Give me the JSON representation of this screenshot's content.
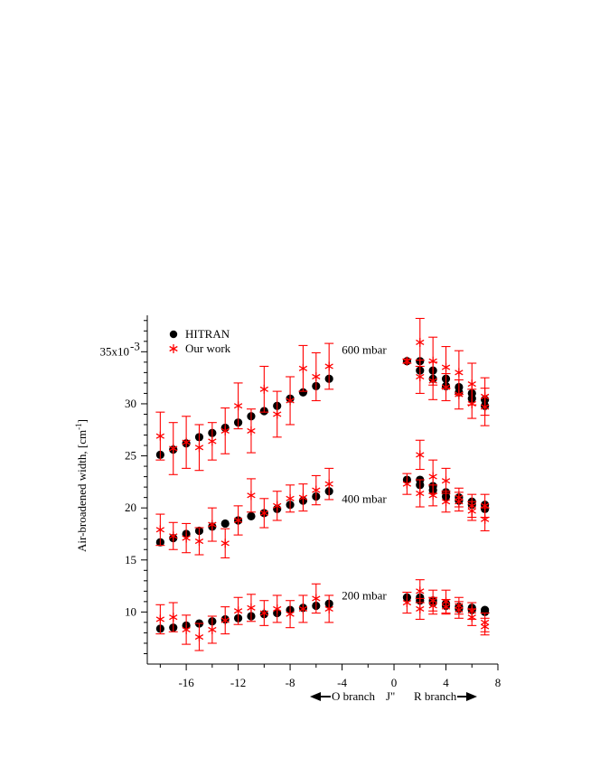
{
  "chart_data": {
    "type": "scatter",
    "ylabel": "Air-broadened width, [cm",
    "ylabel_sup": "-1",
    "ylabel_close": "]",
    "xlabel": "J\"",
    "x_ticks": [
      -16,
      -12,
      -8,
      -4,
      0,
      4,
      8
    ],
    "x_tick_labels": [
      "-16",
      "-12",
      "-8",
      "-4",
      "0",
      "4",
      "8"
    ],
    "y_ticks": [
      10,
      15,
      20,
      25,
      30,
      35
    ],
    "y_tick_labels": [
      "10",
      "15",
      "20",
      "25",
      "30",
      "35x10"
    ],
    "y_tick_exponent": "-3",
    "xlim": [
      -19,
      8
    ],
    "ylim": [
      5,
      38.5
    ],
    "legend": {
      "placement": "top-left",
      "hitran": "HITRAN",
      "ours": "Our work"
    },
    "colors": {
      "hitran": "#000000",
      "ours": "#ff0000"
    },
    "branch_labels": {
      "o": "O branch",
      "r": "R branch"
    },
    "groups": [
      {
        "label": "600 mbar",
        "label_x": -2.3,
        "label_y": 34.8,
        "hitran": [
          [
            -18,
            25.1
          ],
          [
            -17,
            25.6
          ],
          [
            -16,
            26.2
          ],
          [
            -15,
            26.8
          ],
          [
            -14,
            27.2
          ],
          [
            -13,
            27.7
          ],
          [
            -12,
            28.2
          ],
          [
            -11,
            28.8
          ],
          [
            -10,
            29.3
          ],
          [
            -9,
            29.8
          ],
          [
            -8,
            30.5
          ],
          [
            -7,
            31.1
          ],
          [
            -6,
            31.7
          ],
          [
            -5,
            32.4
          ],
          [
            1,
            34.1
          ],
          [
            2,
            34.1
          ],
          [
            2,
            33.2
          ],
          [
            3,
            33.2
          ],
          [
            3,
            32.4
          ],
          [
            4,
            32.4
          ],
          [
            4,
            31.7
          ],
          [
            5,
            31.6
          ],
          [
            5,
            31.1
          ],
          [
            6,
            31.0
          ],
          [
            6,
            30.5
          ],
          [
            7,
            30.4
          ],
          [
            7,
            29.8
          ]
        ],
        "ours": [
          [
            -18,
            26.9,
            2.3
          ],
          [
            -17,
            25.7,
            2.5
          ],
          [
            -16,
            26.3,
            2.5
          ],
          [
            -15,
            25.8,
            2.2
          ],
          [
            -14,
            26.4,
            1.8
          ],
          [
            -13,
            27.4,
            2.2
          ],
          [
            -12,
            29.8,
            2.2
          ],
          [
            -11,
            27.4,
            2.1
          ],
          [
            -10,
            31.4,
            2.2
          ],
          [
            -9,
            29.0,
            2.2
          ],
          [
            -8,
            30.3,
            2.3
          ],
          [
            -7,
            33.4,
            2.2
          ],
          [
            -6,
            32.6,
            2.3
          ],
          [
            -5,
            33.6,
            2.2
          ],
          [
            1,
            34.1,
            0.2
          ],
          [
            2,
            35.9,
            2.3
          ],
          [
            2,
            32.6,
            1.6
          ],
          [
            3,
            34.1,
            2.3
          ],
          [
            3,
            32.2,
            1.8
          ],
          [
            4,
            33.5,
            2.0
          ],
          [
            4,
            31.6,
            1.3
          ],
          [
            5,
            33.0,
            2.1
          ],
          [
            5,
            30.9,
            1.4
          ],
          [
            6,
            31.9,
            2.0
          ],
          [
            6,
            30.0,
            1.4
          ],
          [
            7,
            30.7,
            1.8
          ],
          [
            7,
            29.7,
            1.8
          ]
        ]
      },
      {
        "label": "400 mbar",
        "label_x": -2.3,
        "label_y": 20.5,
        "hitran": [
          [
            -18,
            16.7
          ],
          [
            -17,
            17.1
          ],
          [
            -16,
            17.5
          ],
          [
            -15,
            17.8
          ],
          [
            -14,
            18.2
          ],
          [
            -13,
            18.5
          ],
          [
            -12,
            18.8
          ],
          [
            -11,
            19.2
          ],
          [
            -10,
            19.5
          ],
          [
            -9,
            19.9
          ],
          [
            -8,
            20.3
          ],
          [
            -7,
            20.7
          ],
          [
            -6,
            21.1
          ],
          [
            -5,
            21.6
          ],
          [
            1,
            22.7
          ],
          [
            2,
            22.7
          ],
          [
            2,
            22.2
          ],
          [
            3,
            22.1
          ],
          [
            3,
            21.7
          ],
          [
            4,
            21.5
          ],
          [
            4,
            21.1
          ],
          [
            5,
            21.0
          ],
          [
            5,
            20.7
          ],
          [
            6,
            20.6
          ],
          [
            6,
            20.3
          ],
          [
            7,
            20.3
          ],
          [
            7,
            19.9
          ]
        ],
        "ours": [
          [
            -18,
            17.9,
            1.5
          ],
          [
            -17,
            17.3,
            1.3
          ],
          [
            -16,
            17.1,
            1.4
          ],
          [
            -15,
            16.8,
            1.3
          ],
          [
            -14,
            18.4,
            1.6
          ],
          [
            -13,
            16.6,
            1.4
          ],
          [
            -12,
            18.8,
            1.4
          ],
          [
            -11,
            21.2,
            1.6
          ],
          [
            -10,
            19.5,
            1.4
          ],
          [
            -9,
            20.2,
            1.4
          ],
          [
            -8,
            20.9,
            1.3
          ],
          [
            -7,
            21.0,
            1.3
          ],
          [
            -6,
            21.7,
            1.4
          ],
          [
            -5,
            22.3,
            1.5
          ],
          [
            1,
            22.3,
            1.0
          ],
          [
            2,
            25.1,
            1.4
          ],
          [
            2,
            21.4,
            1.3
          ],
          [
            3,
            23.0,
            1.6
          ],
          [
            3,
            21.2,
            1.0
          ],
          [
            4,
            22.6,
            1.2
          ],
          [
            4,
            20.6,
            1.0
          ],
          [
            5,
            21.0,
            0.9
          ],
          [
            5,
            20.6,
            0.9
          ],
          [
            6,
            20.2,
            1.1
          ],
          [
            6,
            19.7,
            0.9
          ],
          [
            7,
            20.2,
            1.1
          ],
          [
            7,
            18.9,
            1.1
          ]
        ]
      },
      {
        "label": "200 mbar",
        "label_x": -2.3,
        "label_y": 11.2,
        "hitran": [
          [
            -18,
            8.4
          ],
          [
            -17,
            8.5
          ],
          [
            -16,
            8.7
          ],
          [
            -15,
            8.9
          ],
          [
            -14,
            9.1
          ],
          [
            -13,
            9.3
          ],
          [
            -12,
            9.4
          ],
          [
            -11,
            9.6
          ],
          [
            -10,
            9.8
          ],
          [
            -9,
            9.9
          ],
          [
            -8,
            10.2
          ],
          [
            -7,
            10.4
          ],
          [
            -6,
            10.6
          ],
          [
            -5,
            10.8
          ],
          [
            1,
            11.4
          ],
          [
            2,
            11.4
          ],
          [
            2,
            11.1
          ],
          [
            3,
            11.1
          ],
          [
            3,
            10.9
          ],
          [
            4,
            10.8
          ],
          [
            4,
            10.6
          ],
          [
            5,
            10.5
          ],
          [
            5,
            10.3
          ],
          [
            6,
            10.4
          ],
          [
            6,
            10.2
          ],
          [
            7,
            10.2
          ],
          [
            7,
            10.0
          ]
        ],
        "ours": [
          [
            -18,
            9.3,
            1.4
          ],
          [
            -17,
            9.5,
            1.4
          ],
          [
            -16,
            8.3,
            1.4
          ],
          [
            -15,
            7.6,
            1.3
          ],
          [
            -14,
            8.3,
            1.3
          ],
          [
            -13,
            9.2,
            1.3
          ],
          [
            -12,
            10.1,
            1.3
          ],
          [
            -11,
            10.4,
            1.3
          ],
          [
            -10,
            9.9,
            1.2
          ],
          [
            -9,
            10.3,
            1.3
          ],
          [
            -8,
            9.8,
            1.3
          ],
          [
            -7,
            10.3,
            1.3
          ],
          [
            -6,
            11.3,
            1.4
          ],
          [
            -5,
            10.3,
            1.3
          ],
          [
            1,
            10.9,
            1.0
          ],
          [
            2,
            12.0,
            1.1
          ],
          [
            2,
            10.3,
            1.0
          ],
          [
            3,
            11.1,
            1.0
          ],
          [
            3,
            10.6,
            0.8
          ],
          [
            4,
            11.0,
            1.1
          ],
          [
            4,
            10.5,
            0.7
          ],
          [
            5,
            10.6,
            0.8
          ],
          [
            5,
            10.2,
            0.8
          ],
          [
            6,
            10.1,
            0.8
          ],
          [
            6,
            9.5,
            0.8
          ],
          [
            7,
            9.0,
            0.9
          ],
          [
            7,
            8.6,
            0.8
          ]
        ]
      }
    ]
  }
}
